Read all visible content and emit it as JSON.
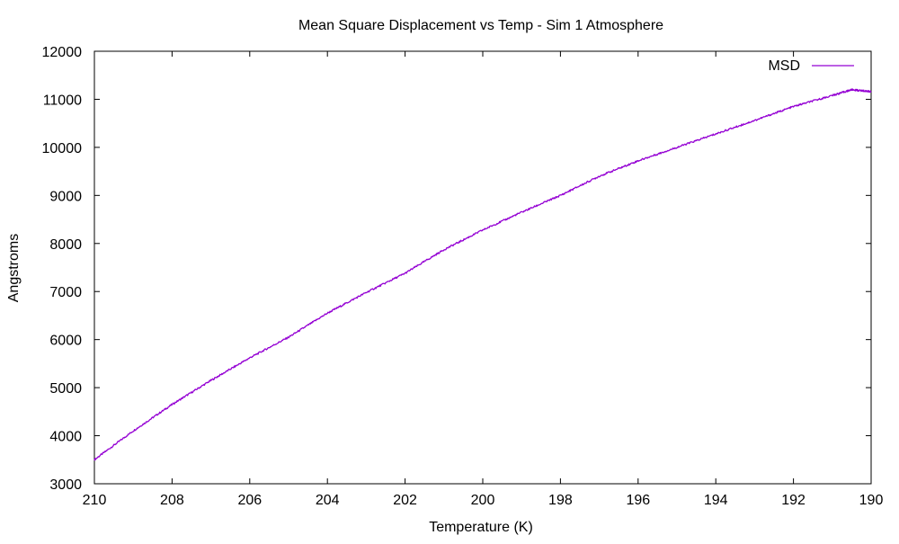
{
  "chart_data": {
    "type": "line",
    "title": "Mean Square Displacement vs Temp - Sim 1 Atmosphere",
    "xlabel": "Temperature (K)",
    "ylabel": "Angstroms",
    "xlim": [
      210,
      190
    ],
    "ylim": [
      3000,
      12000
    ],
    "x_axis_reversed": true,
    "x_ticks": [
      210,
      208,
      206,
      204,
      202,
      200,
      198,
      196,
      194,
      192,
      190
    ],
    "y_ticks": [
      3000,
      4000,
      5000,
      6000,
      7000,
      8000,
      9000,
      10000,
      11000,
      12000
    ],
    "grid": false,
    "legend_position": "top-right",
    "series": [
      {
        "name": "MSD",
        "color": "#9400d3",
        "x": [
          210,
          209,
          208,
          207,
          206,
          205,
          204,
          203,
          202,
          201,
          200,
          199,
          198,
          197,
          196,
          195,
          194,
          193,
          192,
          191,
          190.5,
          190
        ],
        "y": [
          3500,
          4100,
          4650,
          5150,
          5620,
          6050,
          6550,
          6980,
          7380,
          7870,
          8280,
          8650,
          9000,
          9400,
          9720,
          10000,
          10280,
          10560,
          10850,
          11080,
          11200,
          11160
        ]
      }
    ]
  }
}
